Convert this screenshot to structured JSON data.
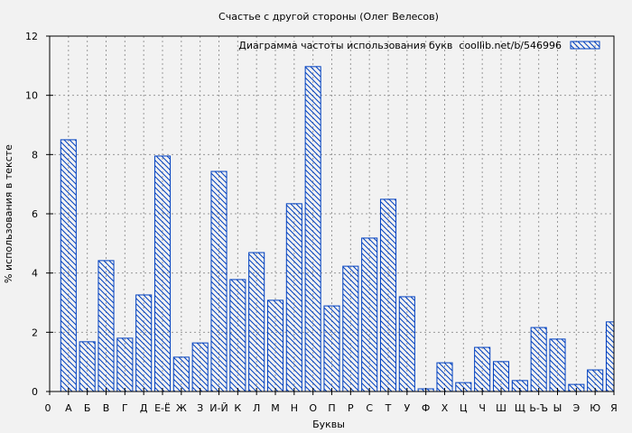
{
  "chart_data": {
    "type": "bar",
    "title": "Счастье с другой стороны (Олег Велесов)",
    "xlabel": "Буквы",
    "ylabel": "% использования в тексте",
    "ylim": [
      0,
      12
    ],
    "yticks": [
      0,
      2,
      4,
      6,
      8,
      10,
      12
    ],
    "grid": true,
    "legend_position": "top-right",
    "x_zero_label": "0",
    "categories": [
      "А",
      "Б",
      "В",
      "Г",
      "Д",
      "Е-Ё",
      "Ж",
      "З",
      "И-Й",
      "К",
      "Л",
      "М",
      "Н",
      "О",
      "П",
      "Р",
      "С",
      "Т",
      "У",
      "Ф",
      "Х",
      "Ц",
      "Ч",
      "Ш",
      "Щ",
      "Ь-Ъ",
      "Ы",
      "Э",
      "Ю",
      "Я"
    ],
    "series": [
      {
        "name": "Диаграмма частоты использования букв  coollib.net/b/546996",
        "values": [
          8.5,
          1.68,
          4.42,
          1.8,
          3.26,
          7.95,
          1.16,
          1.64,
          7.43,
          3.78,
          4.69,
          3.08,
          6.34,
          10.97,
          2.89,
          4.23,
          5.18,
          6.49,
          3.2,
          0.09,
          0.97,
          0.3,
          1.49,
          1.01,
          0.37,
          2.16,
          1.77,
          0.24,
          0.73,
          2.35
        ]
      }
    ],
    "colors": {
      "bar_stroke": "#0040c0",
      "background": "#f2f2f2"
    }
  }
}
